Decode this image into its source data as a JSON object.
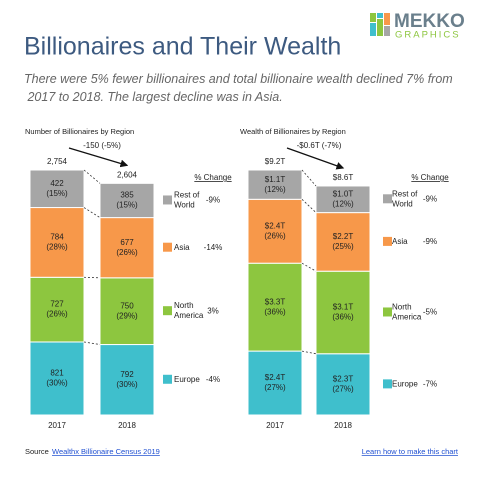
{
  "header": {
    "title": "Billionaires and Their Wealth",
    "subtitle": "There were 5% fewer billionaires and total billionaire wealth declined 7% from 2017 to 2018. The largest decline was in Asia.",
    "logo_main": "MEKKO",
    "logo_sub": "GRAPHICS"
  },
  "chart_data": [
    {
      "type": "stacked_bar",
      "title": "Number of Billionaires by Region",
      "categories": [
        "2017",
        "2018"
      ],
      "change_label": "-150 (-5%)",
      "change_header": "% Change",
      "totals": [
        {
          "value": 2754,
          "label": "2,754"
        },
        {
          "value": 2604,
          "label": "2,604"
        }
      ],
      "series": [
        {
          "name": "Europe",
          "color": "#3fbfcc",
          "values": [
            821,
            792
          ],
          "share_labels": [
            "(30%)",
            "(30%)"
          ],
          "change": "-4%"
        },
        {
          "name": "North America",
          "color": "#8dc63f",
          "values": [
            727,
            750
          ],
          "share_labels": [
            "(26%)",
            "(29%)"
          ],
          "change": "3%"
        },
        {
          "name": "Asia",
          "color": "#f7984a",
          "values": [
            784,
            677
          ],
          "share_labels": [
            "(28%)",
            "(26%)"
          ],
          "change": "-14%"
        },
        {
          "name": "Rest of World",
          "color": "#a6a6a6",
          "values": [
            422,
            385
          ],
          "share_labels": [
            "(15%)",
            "(15%)"
          ],
          "change": "-9%"
        }
      ]
    },
    {
      "type": "stacked_bar",
      "title": "Wealth of Billionaires by Region",
      "categories": [
        "2017",
        "2018"
      ],
      "change_label": "-$0.6T (-7%)",
      "change_header": "% Change",
      "totals": [
        {
          "value": 9.2,
          "label": "$9.2T"
        },
        {
          "value": 8.6,
          "label": "$8.6T"
        }
      ],
      "series": [
        {
          "name": "Europe",
          "color": "#3fbfcc",
          "values": [
            2.4,
            2.3
          ],
          "value_labels": [
            "$2.4T",
            "$2.3T"
          ],
          "share_labels": [
            "(27%)",
            "(27%)"
          ],
          "change": "-7%"
        },
        {
          "name": "North America",
          "color": "#8dc63f",
          "values": [
            3.3,
            3.1
          ],
          "value_labels": [
            "$3.3T",
            "$3.1T"
          ],
          "share_labels": [
            "(36%)",
            "(36%)"
          ],
          "change": "-5%"
        },
        {
          "name": "Asia",
          "color": "#f7984a",
          "values": [
            2.4,
            2.2
          ],
          "value_labels": [
            "$2.4T",
            "$2.2T"
          ],
          "share_labels": [
            "(26%)",
            "(25%)"
          ],
          "change": "-9%"
        },
        {
          "name": "Rest of World",
          "color": "#a6a6a6",
          "values": [
            1.1,
            1.0
          ],
          "value_labels": [
            "$1.1T",
            "$1.0T"
          ],
          "share_labels": [
            "(12%)",
            "(12%)"
          ],
          "change": "-9%"
        }
      ]
    }
  ],
  "footer": {
    "source": "Source",
    "source_link": "Wealthx Billionaire Census 2019",
    "learn_link": "Learn how to make this chart"
  }
}
